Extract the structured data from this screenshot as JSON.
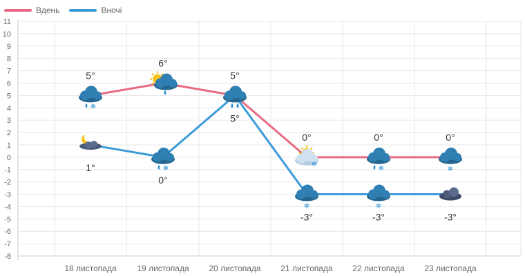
{
  "colors": {
    "day": "#e86a82",
    "night": "#3b9bd9",
    "grid": "#e6e6e6",
    "axis": "#cccccc",
    "tick_text": "#666666",
    "label_text": "#333333"
  },
  "chart_data": {
    "type": "line",
    "title": "",
    "xlabel": "",
    "ylabel": "",
    "ylim": [
      -8,
      11
    ],
    "yticks": [
      "11",
      "10",
      "9",
      "8",
      "7",
      "6",
      "5",
      "4",
      "3",
      "2",
      "1",
      "0",
      "-1",
      "-2",
      "-3",
      "-4",
      "-5",
      "-6",
      "-7",
      "-8"
    ],
    "categories": [
      "18 листопада",
      "19 листопада",
      "20 листопада",
      "21 листопада",
      "22 листопада",
      "23 листопада"
    ],
    "legend_position": "top-left",
    "series": [
      {
        "name": "Вдень",
        "color_key": "day",
        "values": [
          5,
          6,
          5,
          0,
          0,
          0
        ],
        "labels": [
          "5°",
          "6°",
          "5°",
          "0°",
          "0°",
          "0°"
        ],
        "label_position": "above",
        "icons": [
          "cloud-rain-snow-icon",
          "sun-cloud-rain-icon",
          "cloud-rain-icon",
          "sun-cloud-snow-icon",
          "cloud-rain-snow-icon",
          "cloud-snow-icon"
        ]
      },
      {
        "name": "Вночі",
        "color_key": "night",
        "values": [
          1,
          0,
          5,
          -3,
          -3,
          -3
        ],
        "labels": [
          "1°",
          "0°",
          "5°",
          "-3°",
          "-3°",
          "-3°"
        ],
        "label_position": "below",
        "icons": [
          "moon-cloud-icon",
          "cloud-rain-snow-icon",
          "cloud-rain-icon",
          "cloud-snow-icon",
          "cloud-snow-icon",
          "dark-cloud-icon"
        ]
      }
    ]
  }
}
